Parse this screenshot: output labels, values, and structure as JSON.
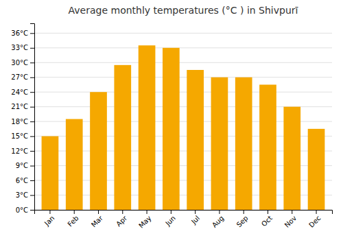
{
  "chart_data": {
    "type": "bar",
    "title": "Average monthly temperatures (°C ) in Shivpurī",
    "categories": [
      "Jan",
      "Feb",
      "Mar",
      "Apr",
      "May",
      "Jun",
      "Jul",
      "Aug",
      "Sep",
      "Oct",
      "Nov",
      "Dec"
    ],
    "values": [
      15,
      18.5,
      24,
      29.5,
      33.5,
      33,
      28.5,
      27,
      27,
      25.5,
      21,
      16.5
    ],
    "color": "#F5A800",
    "ylim": [
      0,
      38
    ],
    "yticks": [
      {
        "value": 0,
        "label": "0°C"
      },
      {
        "value": 3,
        "label": "3°C"
      },
      {
        "value": 6,
        "label": "6°C"
      },
      {
        "value": 9,
        "label": "9°C"
      },
      {
        "value": 12,
        "label": "12°C"
      },
      {
        "value": 15,
        "label": "15°C"
      },
      {
        "value": 18,
        "label": "18°C"
      },
      {
        "value": 21,
        "label": "21°C"
      },
      {
        "value": 24,
        "label": "24°C"
      },
      {
        "value": 27,
        "label": "27°C"
      },
      {
        "value": 30,
        "label": "30°C"
      },
      {
        "value": 33,
        "label": "33°C"
      },
      {
        "value": 36,
        "label": "36°C"
      }
    ],
    "grid": true
  }
}
